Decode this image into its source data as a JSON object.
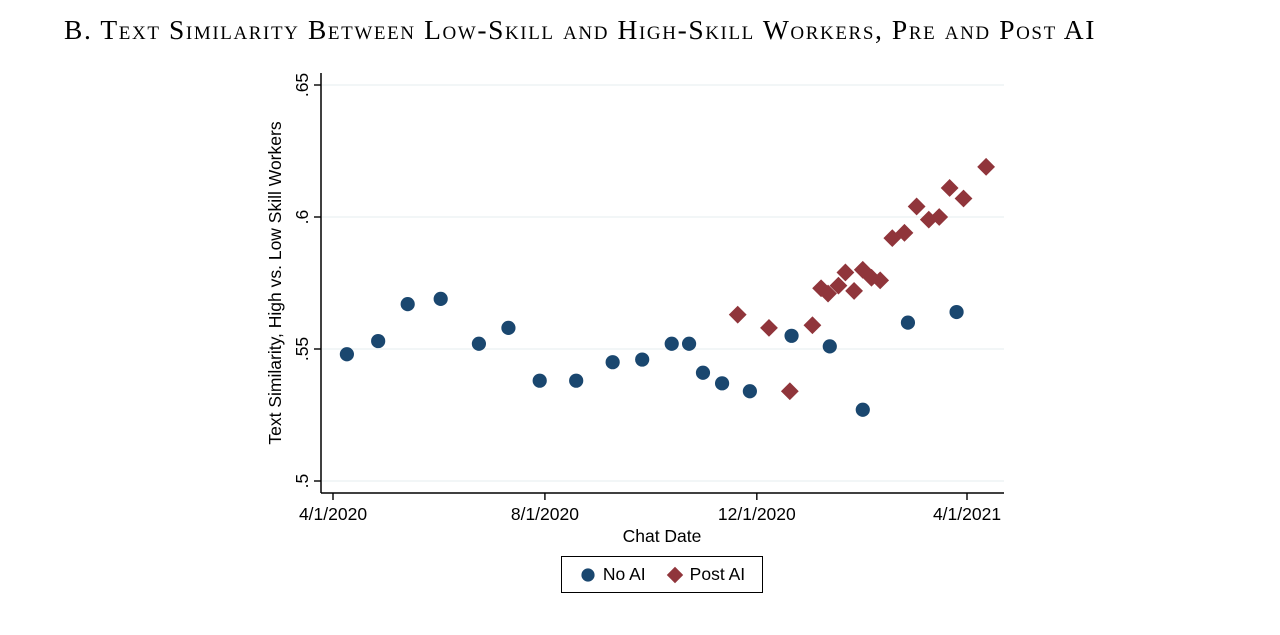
{
  "page": {
    "background": "#ffffff"
  },
  "chart_data": {
    "type": "scatter",
    "title": "B. Text Similarity Between Low-Skill and High-Skill Workers, Pre and Post AI",
    "xlabel": "Chat Date",
    "ylabel": "Text Similarity, High vs. Low Skill Workers",
    "grid": true,
    "grid_color": "#e9f1f2",
    "axis_color": "#000000",
    "legend_position": "bottom-center",
    "ylim": [
      0.5,
      0.655
    ],
    "x_ticks": [
      {
        "label": "4/1/2020",
        "date": "2020-04-01"
      },
      {
        "label": "8/1/2020",
        "date": "2020-08-01"
      },
      {
        "label": "12/1/2020",
        "date": "2020-12-01"
      },
      {
        "label": "4/1/2021",
        "date": "2021-04-01"
      }
    ],
    "y_ticks": [
      {
        "label": ".5",
        "value": 0.5
      },
      {
        "label": ".55",
        "value": 0.55
      },
      {
        "label": ".6",
        "value": 0.6
      },
      {
        "label": ".65",
        "value": 0.65
      }
    ],
    "series": [
      {
        "name": "No AI",
        "marker": "circle",
        "color": "#1a476f",
        "points": [
          [
            "2020-04-09",
            0.548
          ],
          [
            "2020-04-27",
            0.553
          ],
          [
            "2020-05-14",
            0.567
          ],
          [
            "2020-06-02",
            0.569
          ],
          [
            "2020-06-24",
            0.552
          ],
          [
            "2020-07-11",
            0.558
          ],
          [
            "2020-07-29",
            0.538
          ],
          [
            "2020-08-19",
            0.538
          ],
          [
            "2020-09-09",
            0.545
          ],
          [
            "2020-09-26",
            0.546
          ],
          [
            "2020-10-13",
            0.552
          ],
          [
            "2020-10-23",
            0.552
          ],
          [
            "2020-10-31",
            0.541
          ],
          [
            "2020-11-11",
            0.537
          ],
          [
            "2020-11-27",
            0.534
          ],
          [
            "2020-12-21",
            0.555
          ],
          [
            "2021-01-12",
            0.551
          ],
          [
            "2021-01-31",
            0.527
          ],
          [
            "2021-02-26",
            0.56
          ],
          [
            "2021-03-26",
            0.564
          ]
        ]
      },
      {
        "name": "Post AI",
        "marker": "diamond",
        "color": "#90353b",
        "points": [
          [
            "2020-11-20",
            0.563
          ],
          [
            "2020-12-08",
            0.558
          ],
          [
            "2020-12-20",
            0.534
          ],
          [
            "2021-01-02",
            0.559
          ],
          [
            "2021-01-07",
            0.573
          ],
          [
            "2021-01-11",
            0.571
          ],
          [
            "2021-01-17",
            0.574
          ],
          [
            "2021-01-21",
            0.579
          ],
          [
            "2021-01-26",
            0.572
          ],
          [
            "2021-01-31",
            0.58
          ],
          [
            "2021-02-05",
            0.577
          ],
          [
            "2021-02-10",
            0.576
          ],
          [
            "2021-02-17",
            0.592
          ],
          [
            "2021-02-24",
            0.594
          ],
          [
            "2021-03-03",
            0.604
          ],
          [
            "2021-03-10",
            0.599
          ],
          [
            "2021-03-16",
            0.6
          ],
          [
            "2021-03-22",
            0.611
          ],
          [
            "2021-03-30",
            0.607
          ],
          [
            "2021-04-12",
            0.619
          ]
        ]
      }
    ]
  }
}
